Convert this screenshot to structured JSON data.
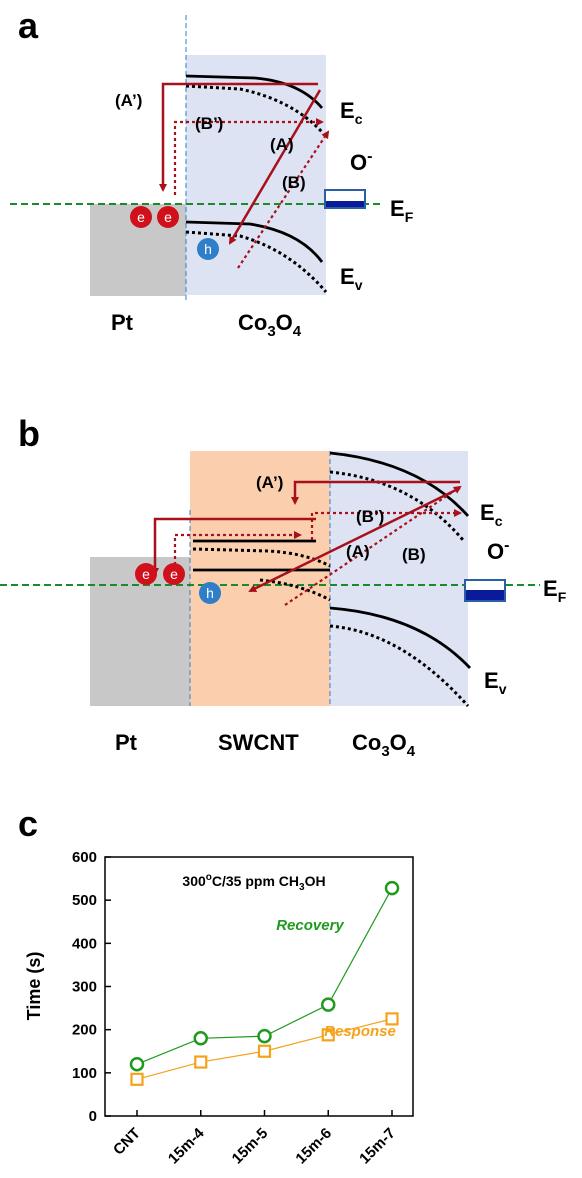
{
  "panel_a": {
    "label": "a",
    "arrows": [
      "(A’)",
      "(B’)",
      "(A)",
      "(B)"
    ],
    "ec": [
      "E",
      "c"
    ],
    "ef": [
      "E",
      "F"
    ],
    "ev": [
      "E",
      "v"
    ],
    "oxygen": [
      "O",
      "-"
    ],
    "electrons": [
      "e",
      "e"
    ],
    "hole": "h",
    "pt": "Pt",
    "co3o4": [
      "Co",
      "3",
      "O",
      "4"
    ]
  },
  "panel_b": {
    "label": "b",
    "arrows": [
      "(A’)",
      "(B’)",
      "(A)",
      "(B)"
    ],
    "ec": [
      "E",
      "c"
    ],
    "ef": [
      "E",
      "F"
    ],
    "ev": [
      "E",
      "v"
    ],
    "oxygen": [
      "O",
      "-"
    ],
    "electrons": [
      "e",
      "e"
    ],
    "hole": "h",
    "pt": "Pt",
    "swcnt": "SWCNT",
    "co3o4": [
      "Co",
      "3",
      "O",
      "4"
    ]
  },
  "chart_data": {
    "type": "line",
    "label": "c",
    "annotation": [
      "300",
      "o",
      "C/35 ppm CH",
      "3",
      "OH"
    ],
    "y_label": "Time (s)",
    "categories": [
      "CNT",
      "15m-4",
      "15m-5",
      "15m-6",
      "15m-7"
    ],
    "series": [
      {
        "name": "Recovery",
        "color": "#1f9a1f",
        "marker": "circle",
        "values": [
          120,
          180,
          185,
          258,
          528
        ]
      },
      {
        "name": "Response",
        "color": "#f5a21b",
        "marker": "square",
        "values": [
          85,
          125,
          150,
          188,
          225
        ]
      }
    ],
    "ylim": [
      0,
      600
    ],
    "yticks": [
      0,
      100,
      200,
      300,
      400,
      500,
      600
    ]
  }
}
